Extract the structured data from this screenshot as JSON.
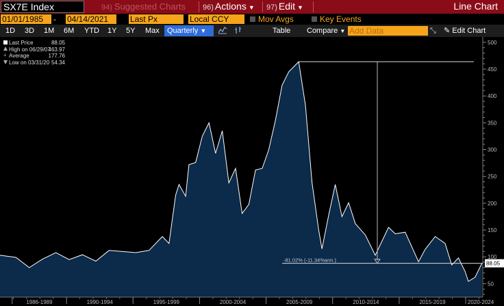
{
  "titlebar": {
    "ticker": "SX7E Index",
    "suggested_num": "94)",
    "suggested_label": "Suggested Charts",
    "actions_num": "96)",
    "actions_label": "Actions",
    "edit_num": "97)",
    "edit_label": "Edit",
    "mode": "Line Chart"
  },
  "controls": {
    "start_date": "01/01/1985",
    "end_date": "04/14/2021",
    "field": "Last Px",
    "currency": "Local CCY",
    "mov_avgs": "Mov Avgs",
    "key_events": "Key Events"
  },
  "toolbar": {
    "periods": [
      "1D",
      "3D",
      "1M",
      "6M",
      "YTD",
      "1Y",
      "5Y",
      "Max"
    ],
    "frequency": "Quarterly",
    "table": "Table",
    "compare": "Compare",
    "add_data_placeholder": "Add Data",
    "edit_chart": "Edit Chart"
  },
  "legend": [
    {
      "label": "Last Price",
      "value": "88.05"
    },
    {
      "label": "High on 06/29/07",
      "value": "463.97"
    },
    {
      "label": "Average",
      "value": "177.76"
    },
    {
      "label": "Low on 03/31/20",
      "value": "54.34"
    }
  ],
  "colors": {
    "area_fill": "#0c2a4a",
    "line": "#ffffff",
    "title_bar": "#8a0c18",
    "accent_orange": "#f6a51a",
    "selected_blue": "#2f6cd9"
  },
  "chart_data": {
    "type": "area",
    "x": [
      "1985-Q1",
      "1986-Q1",
      "1987-Q1",
      "1988-Q1",
      "1989-Q1",
      "1990-Q1",
      "1991-Q1",
      "1992-Q1",
      "1993-Q1",
      "1994-Q1",
      "1995-Q1",
      "1996-Q1",
      "1997-Q1",
      "1997-Q3",
      "1998-Q1",
      "1998-Q2",
      "1998-Q4",
      "1999-Q1",
      "1999-Q3",
      "2000-Q1",
      "2000-Q3",
      "2001-Q1",
      "2001-Q3",
      "2002-Q1",
      "2002-Q3",
      "2003-Q1",
      "2003-Q3",
      "2004-Q1",
      "2004-Q3",
      "2005-Q1",
      "2005-Q3",
      "2006-Q1",
      "2006-Q3",
      "2007-Q2",
      "2007-Q4",
      "2008-Q2",
      "2008-Q4",
      "2009-Q1",
      "2009-Q3",
      "2010-Q1",
      "2010-Q3",
      "2011-Q1",
      "2011-Q3",
      "2012-Q2",
      "2013-Q1",
      "2014-Q1",
      "2014-Q3",
      "2015-Q2",
      "2016-Q2",
      "2016-Q4",
      "2017-Q3",
      "2018-Q2",
      "2018-Q4",
      "2019-Q2",
      "2019-Q4",
      "2020-Q1",
      "2020-Q3",
      "2021-Q1"
    ],
    "y": [
      103,
      99,
      80,
      96,
      108,
      95,
      104,
      92,
      112,
      110,
      108,
      112,
      138,
      125,
      215,
      235,
      213,
      272,
      276,
      325,
      350,
      293,
      335,
      238,
      265,
      181,
      198,
      262,
      265,
      300,
      355,
      420,
      445,
      463.97,
      383,
      238,
      150,
      115,
      178,
      235,
      175,
      201,
      162,
      141,
      103,
      155,
      143,
      146,
      91,
      114,
      138,
      125,
      85,
      98,
      73,
      54.34,
      62,
      88.05
    ],
    "ylim": [
      25,
      510
    ],
    "y_ticks": [
      50,
      100,
      150,
      200,
      250,
      300,
      350,
      400,
      450,
      500
    ],
    "x_range": [
      "1985-01-01",
      "2021-04-14"
    ],
    "x_tick_labels": [
      "1986-1989",
      "1990-1994",
      "1995-1999",
      "2000-2004",
      "2005-2009",
      "2010-2014",
      "2015-2019",
      "2020-2024"
    ],
    "last_value_label": "88.05",
    "annotation": "-81.02% (-11.34%ann.)",
    "drawdown": {
      "from_date": "2007-06-29",
      "from_value": 463.97,
      "to_value": 88.05
    }
  }
}
